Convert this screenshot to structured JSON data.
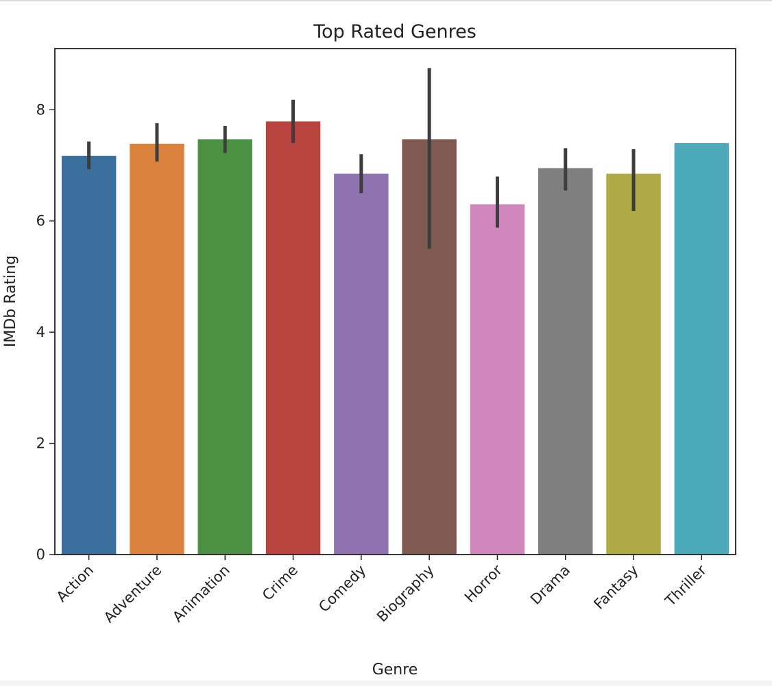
{
  "chart_data": {
    "type": "bar",
    "title": "Top Rated Genres",
    "xlabel": "Genre",
    "ylabel": "IMDb Rating",
    "categories": [
      "Action",
      "Adventure",
      "Animation",
      "Crime",
      "Comedy",
      "Biography",
      "Horror",
      "Drama",
      "Fantasy",
      "Thriller"
    ],
    "values": [
      7.17,
      7.39,
      7.47,
      7.79,
      6.85,
      7.47,
      6.3,
      6.95,
      6.85,
      7.4
    ],
    "error_low": [
      6.93,
      7.07,
      7.22,
      7.4,
      6.5,
      5.5,
      5.88,
      6.55,
      6.18,
      7.4
    ],
    "error_high": [
      7.43,
      7.76,
      7.71,
      8.18,
      7.2,
      8.75,
      6.8,
      7.31,
      7.29,
      7.4
    ],
    "colors": [
      "#3a6f9d",
      "#d9833d",
      "#4b9144",
      "#b9443e",
      "#8f73b0",
      "#7f5a50",
      "#cf87bc",
      "#7f7f7f",
      "#aeab46",
      "#4ba9b9"
    ],
    "yticks": [
      0,
      2,
      4,
      6,
      8
    ],
    "ylim": [
      0,
      9.1
    ],
    "grid": false,
    "legend": "none"
  }
}
